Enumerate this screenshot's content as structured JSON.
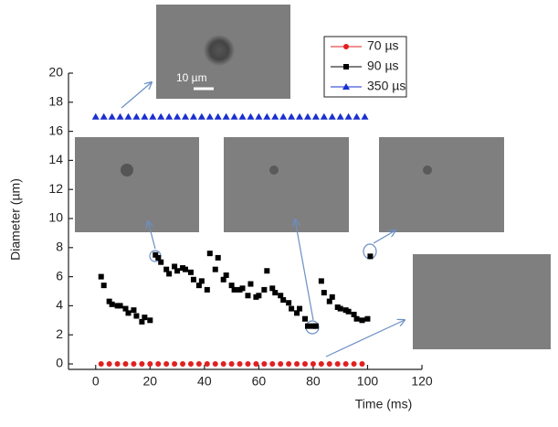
{
  "chart_data": {
    "type": "scatter",
    "x_label": "Time (ms)",
    "y_label": "Diameter (µm)",
    "xlim": [
      -10,
      120
    ],
    "xticks": [
      0,
      20,
      40,
      60,
      80,
      100,
      120
    ],
    "ylim": [
      0,
      20
    ],
    "yticks": [
      0,
      2,
      4,
      6,
      8,
      10,
      12,
      14,
      16,
      18,
      20
    ],
    "scale_bar_label": "10 µm",
    "series": [
      {
        "name": "70 µs",
        "color": "#e02020",
        "marker": "circle",
        "x": [
          2,
          5,
          8,
          11,
          14,
          17,
          20,
          23,
          26,
          29,
          32,
          35,
          38,
          41,
          44,
          47,
          50,
          53,
          56,
          59,
          62,
          65,
          68,
          71,
          74,
          77,
          80,
          83,
          86,
          89,
          92,
          95,
          98
        ],
        "values": [
          0,
          0,
          0,
          0,
          0,
          0,
          0,
          0,
          0,
          0,
          0,
          0,
          0,
          0,
          0,
          0,
          0,
          0,
          0,
          0,
          0,
          0,
          0,
          0,
          0,
          0,
          0,
          0,
          0,
          0,
          0,
          0,
          0
        ]
      },
      {
        "name": "90 µs",
        "color": "#000000",
        "marker": "square",
        "x": [
          2,
          3,
          5,
          6,
          8,
          9,
          11,
          12,
          14,
          15,
          17,
          18,
          20,
          22,
          23,
          24,
          26,
          27,
          29,
          30,
          32,
          33,
          35,
          36,
          38,
          39,
          41,
          42,
          44,
          45,
          47,
          48,
          50,
          51,
          53,
          54,
          56,
          57,
          59,
          60,
          62,
          63,
          65,
          66,
          68,
          69,
          71,
          72,
          74,
          75,
          77,
          78,
          80,
          81,
          83,
          84,
          86,
          87,
          89,
          90,
          92,
          93,
          95,
          96,
          98,
          100,
          101
        ],
        "values": [
          6.0,
          5.4,
          4.3,
          4.1,
          4.0,
          4.0,
          3.8,
          3.5,
          3.7,
          3.3,
          2.9,
          3.2,
          3.0,
          7.5,
          7.3,
          7.0,
          6.5,
          6.2,
          6.7,
          6.4,
          6.6,
          6.5,
          6.3,
          5.8,
          5.4,
          5.7,
          5.1,
          7.6,
          6.5,
          7.3,
          5.8,
          6.1,
          5.4,
          5.1,
          5.1,
          5.2,
          4.7,
          5.5,
          4.6,
          4.7,
          5.1,
          6.4,
          5.2,
          4.9,
          4.7,
          4.4,
          4.2,
          3.8,
          3.5,
          3.8,
          3.1,
          2.6,
          2.6,
          2.6,
          5.7,
          4.9,
          4.3,
          4.6,
          3.9,
          3.8,
          3.7,
          3.6,
          3.4,
          3.1,
          3.0,
          3.1,
          7.4
        ]
      },
      {
        "name": "350 µs",
        "color": "#1a2fd0",
        "marker": "triangle",
        "x": [
          0,
          3,
          6,
          9,
          12,
          15,
          18,
          21,
          24,
          27,
          30,
          33,
          36,
          39,
          42,
          45,
          48,
          51,
          54,
          57,
          60,
          63,
          66,
          69,
          72,
          75,
          78,
          81,
          84,
          87,
          90,
          93,
          96,
          99
        ],
        "values": [
          17,
          17,
          17,
          17,
          17,
          17,
          17,
          17,
          17,
          17,
          17,
          17,
          17,
          17,
          17,
          17,
          17,
          17,
          17,
          17,
          17,
          17,
          17,
          17,
          17,
          17,
          17,
          17,
          17,
          17,
          17,
          17,
          17,
          17
        ]
      }
    ]
  }
}
